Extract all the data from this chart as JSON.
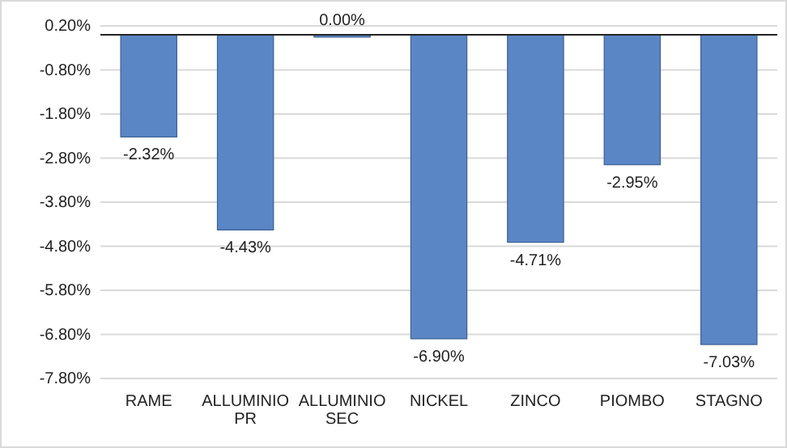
{
  "chart_data": {
    "type": "bar",
    "categories": [
      "RAME",
      "ALLUMINIO PR",
      "ALLUMINIO SEC",
      "NICKEL",
      "ZINCO",
      "PIOMBO",
      "STAGNO"
    ],
    "values": [
      -2.32,
      -4.43,
      0,
      -6.9,
      -4.71,
      -2.95,
      -7.03
    ],
    "value_labels": [
      "-2.32%",
      "-4.43%",
      "0.00%",
      "-6.90%",
      "-4.71%",
      "-2.95%",
      "-7.03%"
    ],
    "color": "#5b86c5",
    "ylim": [
      -7.8,
      0.2
    ],
    "yticks": [
      {
        "value": 0.2,
        "label": "0.20%"
      },
      {
        "value": -0.8,
        "label": "-0.80%"
      },
      {
        "value": -1.8,
        "label": "-1.80%"
      },
      {
        "value": -2.8,
        "label": "-2.80%"
      },
      {
        "value": -3.8,
        "label": "-3.80%"
      },
      {
        "value": -4.8,
        "label": "-4.80%"
      },
      {
        "value": -5.8,
        "label": "-5.80%"
      },
      {
        "value": -6.8,
        "label": "-6.80%"
      },
      {
        "value": -7.8,
        "label": "-7.80%"
      }
    ],
    "grid": "y"
  }
}
